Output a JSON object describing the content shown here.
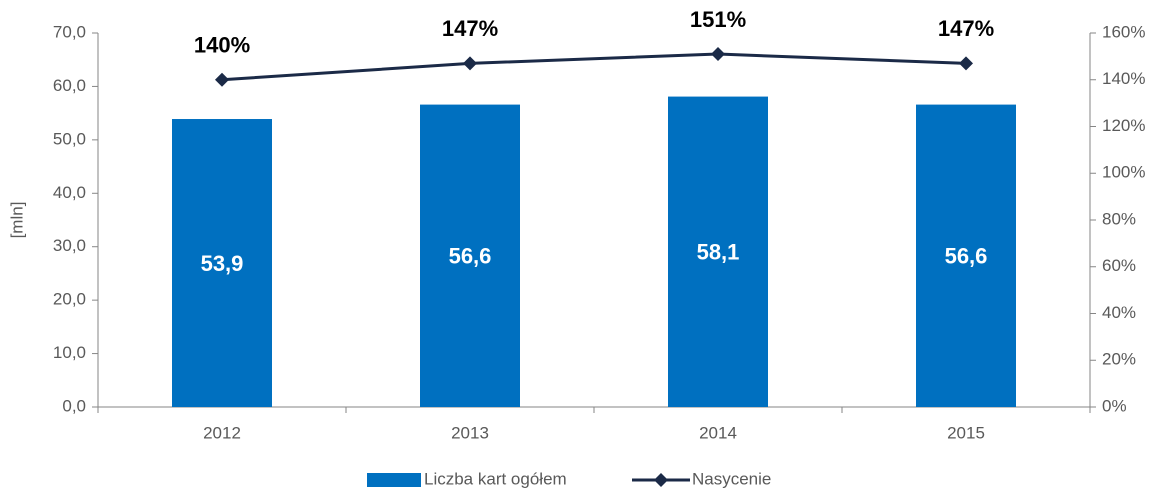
{
  "chart_data": {
    "type": "bar",
    "y_label": "[mln]",
    "categories": [
      "2012",
      "2013",
      "2014",
      "2015"
    ],
    "series": [
      {
        "name": "Liczba kart ogółem",
        "type": "bar",
        "color": "#0070c0",
        "values": [
          53.9,
          56.6,
          58.1,
          56.6
        ],
        "value_labels": [
          "53,9",
          "56,6",
          "58,1",
          "56,6"
        ]
      },
      {
        "name": "Nasycenie",
        "type": "line",
        "axis": "y2",
        "color": "#1b2a47",
        "values": [
          140,
          147,
          151,
          147
        ],
        "value_labels": [
          "140%",
          "147%",
          "151%",
          "147%"
        ]
      }
    ],
    "ylim": [
      0,
      70
    ],
    "yticks": [
      {
        "value": 0,
        "label": "0,0"
      },
      {
        "value": 10,
        "label": "10,0"
      },
      {
        "value": 20,
        "label": "20,0"
      },
      {
        "value": 30,
        "label": "30,0"
      },
      {
        "value": 40,
        "label": "40,0"
      },
      {
        "value": 50,
        "label": "50,0"
      },
      {
        "value": 60,
        "label": "60,0"
      },
      {
        "value": 70,
        "label": "70,0"
      }
    ],
    "y2lim": [
      0,
      160
    ],
    "y2ticks": [
      {
        "value": 0,
        "label": "0%"
      },
      {
        "value": 20,
        "label": "20%"
      },
      {
        "value": 40,
        "label": "40%"
      },
      {
        "value": 60,
        "label": "60%"
      },
      {
        "value": 80,
        "label": "80%"
      },
      {
        "value": 100,
        "label": "100%"
      },
      {
        "value": 120,
        "label": "120%"
      },
      {
        "value": 140,
        "label": "140%"
      },
      {
        "value": 160,
        "label": "160%"
      }
    ],
    "legend": "bottom"
  }
}
